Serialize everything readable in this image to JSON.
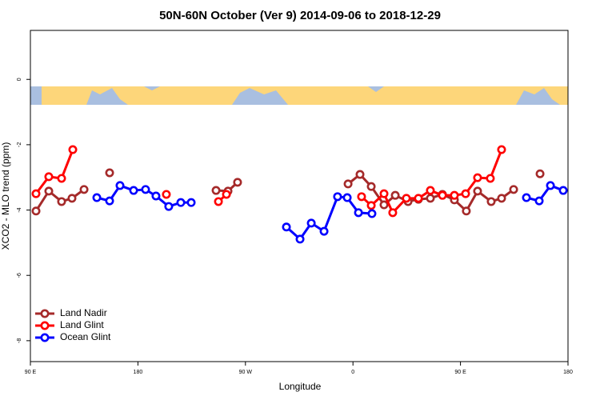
{
  "chart_data": {
    "type": "line",
    "title": "50N-60N October (Ver 9)   2014-09-06 to 2018-12-29",
    "x_label": "Longitude",
    "y_label": "XCO2 - MLO trend (ppm)",
    "xlim": [
      90,
      540
    ],
    "ylim": [
      -8.64,
      1.5
    ],
    "xticks": [
      {
        "value": 90,
        "label": "90 E"
      },
      180,
      {
        "value": 270,
        "label": "90 W"
      },
      {
        "value": 360,
        "label": "0"
      },
      {
        "value": 450,
        "label": "90 E"
      },
      {
        "value": 540,
        "label": "180"
      }
    ],
    "yticks": [
      0,
      -2,
      -4,
      -6,
      -8
    ],
    "legend": "bottom-left",
    "series": [
      {
        "name": "Land Nadir",
        "color": "#a52a2a",
        "x": [
          94.7,
          105.4,
          116.1,
          124.8,
          134.9,
          null,
          156.3,
          null,
          245.4,
          255.4,
          263.4,
          null,
          355.9,
          365.9,
          375.3,
          386.0,
          395.4,
          406.1,
          414.8,
          424.8,
          434.9,
          444.9,
          454.9,
          464.3,
          475.7,
          484.4,
          494.5,
          null,
          516.6
        ],
        "values": [
          -4.03,
          -3.42,
          -3.74,
          -3.64,
          -3.37,
          null,
          -2.86,
          null,
          -3.4,
          -3.42,
          -3.15,
          null,
          -3.2,
          -2.91,
          -3.28,
          -3.84,
          -3.55,
          -3.74,
          -3.67,
          -3.64,
          -3.52,
          -3.69,
          -4.03,
          -3.42,
          -3.74,
          -3.64,
          -3.37,
          null,
          -2.89
        ]
      },
      {
        "name": "Land Glint",
        "color": "#ff0000",
        "x": [
          94.7,
          105.4,
          116.1,
          125.5,
          null,
          203.8,
          null,
          247.4,
          254.1,
          null,
          367.2,
          375.3,
          386.0,
          393.3,
          404.7,
          414.8,
          424.8,
          434.9,
          444.9,
          454.3,
          464.3,
          475.0,
          484.4
        ],
        "values": [
          -3.5,
          -2.98,
          -3.03,
          -2.15,
          null,
          -3.52,
          null,
          -3.74,
          -3.52,
          null,
          -3.59,
          -3.86,
          -3.5,
          -4.08,
          -3.64,
          -3.64,
          -3.4,
          -3.55,
          -3.55,
          -3.5,
          -3.01,
          -3.03,
          -2.15
        ]
      },
      {
        "name": "Ocean Glint",
        "color": "#0000ff",
        "x": [
          145.6,
          156.3,
          165.0,
          176.4,
          186.4,
          195.1,
          205.8,
          215.9,
          224.6,
          null,
          304.3,
          315.7,
          325.1,
          335.8,
          347.1,
          355.2,
          364.6,
          375.9,
          null,
          505.2,
          515.9,
          525.3,
          536.0
        ],
        "values": [
          -3.62,
          -3.72,
          -3.25,
          -3.4,
          -3.37,
          -3.57,
          -3.89,
          -3.77,
          -3.77,
          null,
          -4.52,
          -4.89,
          -4.4,
          -4.65,
          -3.59,
          -3.62,
          -4.08,
          -4.11,
          null,
          -3.62,
          -3.72,
          -3.25,
          -3.4
        ]
      }
    ]
  }
}
